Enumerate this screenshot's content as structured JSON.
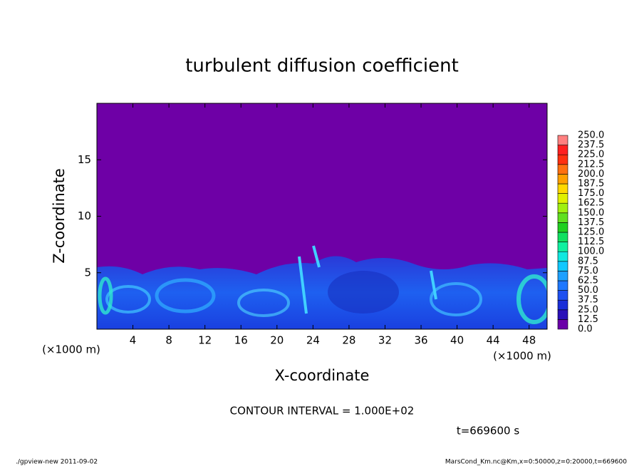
{
  "chart_data": {
    "type": "contour",
    "title": "turbulent diffusion coefficient",
    "xlabel": "X-coordinate",
    "ylabel": "Z-coordinate",
    "x_unit": "(×1000 m)",
    "y_unit": "(×1000 m)",
    "xlim": [
      0,
      50
    ],
    "ylim": [
      0,
      20
    ],
    "xticks": [
      4,
      8,
      12,
      16,
      20,
      24,
      28,
      32,
      36,
      40,
      44,
      48
    ],
    "yticks": [
      5,
      10,
      15
    ],
    "colorbar": {
      "levels": [
        {
          "value": 0,
          "label": "0.0"
        },
        {
          "value": 12.5,
          "label": "12.5"
        },
        {
          "value": 25,
          "label": "25.0"
        },
        {
          "value": 37.5,
          "label": "37.5"
        },
        {
          "value": 50,
          "label": "50.0"
        },
        {
          "value": 62.5,
          "label": "62.5"
        },
        {
          "value": 75,
          "label": "75.0"
        },
        {
          "value": 87.5,
          "label": "87.5"
        },
        {
          "value": 100,
          "label": "100.0"
        },
        {
          "value": 112.5,
          "label": "112.5"
        },
        {
          "value": 125,
          "label": "125.0"
        },
        {
          "value": 137.5,
          "label": "137.5"
        },
        {
          "value": 150,
          "label": "150.0"
        },
        {
          "value": 162.5,
          "label": "162.5"
        },
        {
          "value": 175,
          "label": "175.0"
        },
        {
          "value": 187.5,
          "label": "187.5"
        },
        {
          "value": 200,
          "label": "200.0"
        },
        {
          "value": 212.5,
          "label": "212.5"
        },
        {
          "value": 225,
          "label": "225.0"
        },
        {
          "value": 237.5,
          "label": "237.5"
        },
        {
          "value": 250,
          "label": "250.0"
        }
      ],
      "colors": [
        "#6a00a8",
        "#2a10b8",
        "#1a2ed8",
        "#1e50f0",
        "#1e78ff",
        "#1ea0ff",
        "#10c8ff",
        "#10e8e0",
        "#10f0a0",
        "#10e060",
        "#20d020",
        "#60e020",
        "#a0f010",
        "#e0f000",
        "#ffd800",
        "#ffa000",
        "#ff7010",
        "#ff3010",
        "#ff2020",
        "#ff8080"
      ]
    },
    "annotations": {
      "contour_interval": "CONTOUR INTERVAL = 1.000E+02",
      "time": "t=669600 s",
      "footer_left": "./gpview-new  2011-09-02",
      "footer_right": "MarsCond_Km.nc@Km,x=0:50000,z=0:20000,t=669600"
    }
  }
}
